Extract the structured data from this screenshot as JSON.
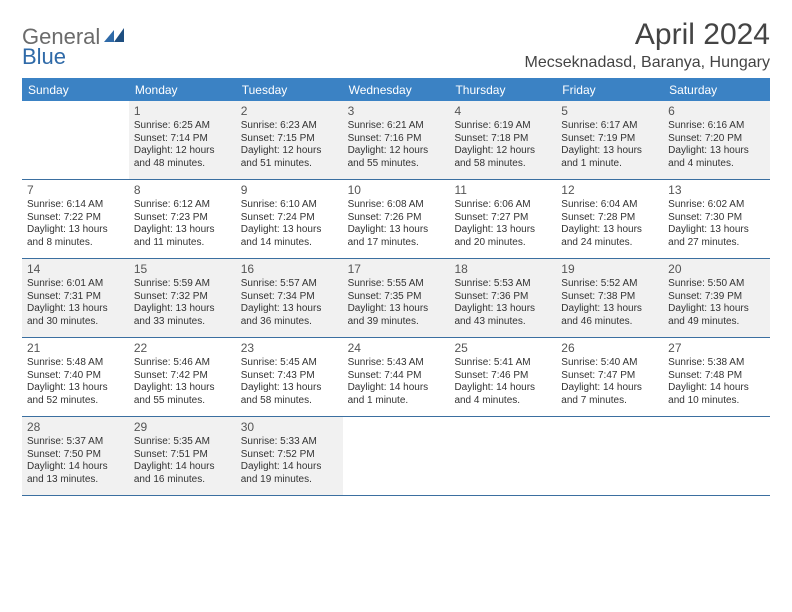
{
  "logo": {
    "part1": "General",
    "part2": "Blue"
  },
  "title": "April 2024",
  "location": "Mecseknadasd, Baranya, Hungary",
  "colors": {
    "header_bg": "#3b82c4",
    "header_text": "#ffffff",
    "border": "#3b6fa0",
    "shade": "#f1f1f1",
    "text": "#333333",
    "title_text": "#444444"
  },
  "dow": [
    "Sunday",
    "Monday",
    "Tuesday",
    "Wednesday",
    "Thursday",
    "Friday",
    "Saturday"
  ],
  "weeks": [
    [
      {
        "day": "",
        "sunrise": "",
        "sunset": "",
        "daylight": "",
        "shade": false
      },
      {
        "day": "1",
        "sunrise": "Sunrise: 6:25 AM",
        "sunset": "Sunset: 7:14 PM",
        "daylight": "Daylight: 12 hours and 48 minutes.",
        "shade": true
      },
      {
        "day": "2",
        "sunrise": "Sunrise: 6:23 AM",
        "sunset": "Sunset: 7:15 PM",
        "daylight": "Daylight: 12 hours and 51 minutes.",
        "shade": true
      },
      {
        "day": "3",
        "sunrise": "Sunrise: 6:21 AM",
        "sunset": "Sunset: 7:16 PM",
        "daylight": "Daylight: 12 hours and 55 minutes.",
        "shade": true
      },
      {
        "day": "4",
        "sunrise": "Sunrise: 6:19 AM",
        "sunset": "Sunset: 7:18 PM",
        "daylight": "Daylight: 12 hours and 58 minutes.",
        "shade": true
      },
      {
        "day": "5",
        "sunrise": "Sunrise: 6:17 AM",
        "sunset": "Sunset: 7:19 PM",
        "daylight": "Daylight: 13 hours and 1 minute.",
        "shade": true
      },
      {
        "day": "6",
        "sunrise": "Sunrise: 6:16 AM",
        "sunset": "Sunset: 7:20 PM",
        "daylight": "Daylight: 13 hours and 4 minutes.",
        "shade": true
      }
    ],
    [
      {
        "day": "7",
        "sunrise": "Sunrise: 6:14 AM",
        "sunset": "Sunset: 7:22 PM",
        "daylight": "Daylight: 13 hours and 8 minutes.",
        "shade": false
      },
      {
        "day": "8",
        "sunrise": "Sunrise: 6:12 AM",
        "sunset": "Sunset: 7:23 PM",
        "daylight": "Daylight: 13 hours and 11 minutes.",
        "shade": false
      },
      {
        "day": "9",
        "sunrise": "Sunrise: 6:10 AM",
        "sunset": "Sunset: 7:24 PM",
        "daylight": "Daylight: 13 hours and 14 minutes.",
        "shade": false
      },
      {
        "day": "10",
        "sunrise": "Sunrise: 6:08 AM",
        "sunset": "Sunset: 7:26 PM",
        "daylight": "Daylight: 13 hours and 17 minutes.",
        "shade": false
      },
      {
        "day": "11",
        "sunrise": "Sunrise: 6:06 AM",
        "sunset": "Sunset: 7:27 PM",
        "daylight": "Daylight: 13 hours and 20 minutes.",
        "shade": false
      },
      {
        "day": "12",
        "sunrise": "Sunrise: 6:04 AM",
        "sunset": "Sunset: 7:28 PM",
        "daylight": "Daylight: 13 hours and 24 minutes.",
        "shade": false
      },
      {
        "day": "13",
        "sunrise": "Sunrise: 6:02 AM",
        "sunset": "Sunset: 7:30 PM",
        "daylight": "Daylight: 13 hours and 27 minutes.",
        "shade": false
      }
    ],
    [
      {
        "day": "14",
        "sunrise": "Sunrise: 6:01 AM",
        "sunset": "Sunset: 7:31 PM",
        "daylight": "Daylight: 13 hours and 30 minutes.",
        "shade": true
      },
      {
        "day": "15",
        "sunrise": "Sunrise: 5:59 AM",
        "sunset": "Sunset: 7:32 PM",
        "daylight": "Daylight: 13 hours and 33 minutes.",
        "shade": true
      },
      {
        "day": "16",
        "sunrise": "Sunrise: 5:57 AM",
        "sunset": "Sunset: 7:34 PM",
        "daylight": "Daylight: 13 hours and 36 minutes.",
        "shade": true
      },
      {
        "day": "17",
        "sunrise": "Sunrise: 5:55 AM",
        "sunset": "Sunset: 7:35 PM",
        "daylight": "Daylight: 13 hours and 39 minutes.",
        "shade": true
      },
      {
        "day": "18",
        "sunrise": "Sunrise: 5:53 AM",
        "sunset": "Sunset: 7:36 PM",
        "daylight": "Daylight: 13 hours and 43 minutes.",
        "shade": true
      },
      {
        "day": "19",
        "sunrise": "Sunrise: 5:52 AM",
        "sunset": "Sunset: 7:38 PM",
        "daylight": "Daylight: 13 hours and 46 minutes.",
        "shade": true
      },
      {
        "day": "20",
        "sunrise": "Sunrise: 5:50 AM",
        "sunset": "Sunset: 7:39 PM",
        "daylight": "Daylight: 13 hours and 49 minutes.",
        "shade": true
      }
    ],
    [
      {
        "day": "21",
        "sunrise": "Sunrise: 5:48 AM",
        "sunset": "Sunset: 7:40 PM",
        "daylight": "Daylight: 13 hours and 52 minutes.",
        "shade": false
      },
      {
        "day": "22",
        "sunrise": "Sunrise: 5:46 AM",
        "sunset": "Sunset: 7:42 PM",
        "daylight": "Daylight: 13 hours and 55 minutes.",
        "shade": false
      },
      {
        "day": "23",
        "sunrise": "Sunrise: 5:45 AM",
        "sunset": "Sunset: 7:43 PM",
        "daylight": "Daylight: 13 hours and 58 minutes.",
        "shade": false
      },
      {
        "day": "24",
        "sunrise": "Sunrise: 5:43 AM",
        "sunset": "Sunset: 7:44 PM",
        "daylight": "Daylight: 14 hours and 1 minute.",
        "shade": false
      },
      {
        "day": "25",
        "sunrise": "Sunrise: 5:41 AM",
        "sunset": "Sunset: 7:46 PM",
        "daylight": "Daylight: 14 hours and 4 minutes.",
        "shade": false
      },
      {
        "day": "26",
        "sunrise": "Sunrise: 5:40 AM",
        "sunset": "Sunset: 7:47 PM",
        "daylight": "Daylight: 14 hours and 7 minutes.",
        "shade": false
      },
      {
        "day": "27",
        "sunrise": "Sunrise: 5:38 AM",
        "sunset": "Sunset: 7:48 PM",
        "daylight": "Daylight: 14 hours and 10 minutes.",
        "shade": false
      }
    ],
    [
      {
        "day": "28",
        "sunrise": "Sunrise: 5:37 AM",
        "sunset": "Sunset: 7:50 PM",
        "daylight": "Daylight: 14 hours and 13 minutes.",
        "shade": true
      },
      {
        "day": "29",
        "sunrise": "Sunrise: 5:35 AM",
        "sunset": "Sunset: 7:51 PM",
        "daylight": "Daylight: 14 hours and 16 minutes.",
        "shade": true
      },
      {
        "day": "30",
        "sunrise": "Sunrise: 5:33 AM",
        "sunset": "Sunset: 7:52 PM",
        "daylight": "Daylight: 14 hours and 19 minutes.",
        "shade": true
      },
      {
        "day": "",
        "sunrise": "",
        "sunset": "",
        "daylight": "",
        "shade": false
      },
      {
        "day": "",
        "sunrise": "",
        "sunset": "",
        "daylight": "",
        "shade": false
      },
      {
        "day": "",
        "sunrise": "",
        "sunset": "",
        "daylight": "",
        "shade": false
      },
      {
        "day": "",
        "sunrise": "",
        "sunset": "",
        "daylight": "",
        "shade": false
      }
    ]
  ]
}
